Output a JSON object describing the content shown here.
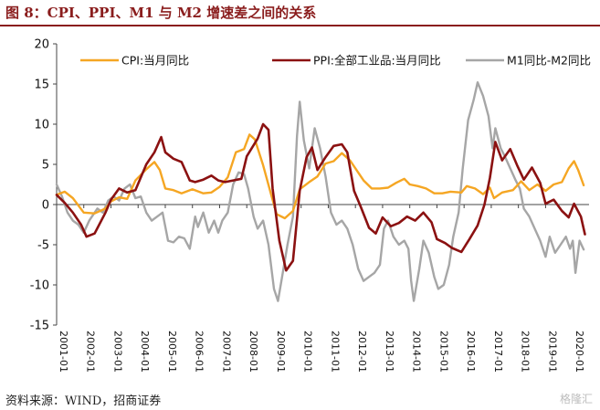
{
  "header": {
    "title": "图 8：CPI、PPI、M1 与 M2 增速差之间的关系"
  },
  "footer": {
    "source": "资料来源：WIND，招商证券",
    "watermark": "格隆汇"
  },
  "colors": {
    "cpi": "#f5a623",
    "ppi": "#8b1111",
    "m1m2": "#a6a6a6",
    "axis": "#444444",
    "title": "#8a1d1d"
  },
  "chart_data": {
    "type": "line",
    "title": "",
    "xlabel": "",
    "ylabel": "",
    "ylim": [
      -15,
      20
    ],
    "yticks": [
      -15,
      -10,
      -5,
      0,
      5,
      10,
      15,
      20
    ],
    "xlim": [
      2001.0,
      2020.6
    ],
    "xtick_labels": [
      "2001-01",
      "2002-01",
      "2003-01",
      "2004-01",
      "2005-01",
      "2006-01",
      "2007-01",
      "2008-01",
      "2009-01",
      "2010-01",
      "2011-01",
      "2012-01",
      "2013-01",
      "2014-01",
      "2015-01",
      "2016-01",
      "2017-01",
      "2018-01",
      "2019-01",
      "2020-01"
    ],
    "grid": false,
    "legend": "top",
    "series": [
      {
        "name": "CPI:当月同比",
        "color_key": "cpi",
        "points": [
          [
            2001.0,
            1.2
          ],
          [
            2001.3,
            1.6
          ],
          [
            2001.6,
            0.8
          ],
          [
            2002.0,
            -1.0
          ],
          [
            2002.4,
            -1.1
          ],
          [
            2002.8,
            -0.5
          ],
          [
            2003.0,
            0.4
          ],
          [
            2003.3,
            0.9
          ],
          [
            2003.6,
            0.7
          ],
          [
            2003.9,
            3.0
          ],
          [
            2004.3,
            4.4
          ],
          [
            2004.6,
            5.3
          ],
          [
            2004.8,
            4.3
          ],
          [
            2005.0,
            2.0
          ],
          [
            2005.3,
            1.8
          ],
          [
            2005.6,
            1.4
          ],
          [
            2006.0,
            1.9
          ],
          [
            2006.4,
            1.4
          ],
          [
            2006.7,
            1.5
          ],
          [
            2007.0,
            2.2
          ],
          [
            2007.3,
            3.4
          ],
          [
            2007.6,
            6.5
          ],
          [
            2007.9,
            6.9
          ],
          [
            2008.1,
            8.7
          ],
          [
            2008.3,
            8.1
          ],
          [
            2008.6,
            4.9
          ],
          [
            2008.9,
            1.2
          ],
          [
            2009.1,
            -1.2
          ],
          [
            2009.4,
            -1.7
          ],
          [
            2009.7,
            -0.8
          ],
          [
            2009.95,
            1.9
          ],
          [
            2010.3,
            2.8
          ],
          [
            2010.6,
            3.5
          ],
          [
            2010.9,
            5.1
          ],
          [
            2011.2,
            5.4
          ],
          [
            2011.5,
            6.4
          ],
          [
            2011.8,
            5.5
          ],
          [
            2012.0,
            4.5
          ],
          [
            2012.3,
            3.0
          ],
          [
            2012.6,
            2.0
          ],
          [
            2012.9,
            2.0
          ],
          [
            2013.2,
            2.1
          ],
          [
            2013.5,
            2.7
          ],
          [
            2013.8,
            3.2
          ],
          [
            2014.0,
            2.5
          ],
          [
            2014.3,
            2.3
          ],
          [
            2014.6,
            2.0
          ],
          [
            2014.9,
            1.4
          ],
          [
            2015.2,
            1.4
          ],
          [
            2015.5,
            1.6
          ],
          [
            2015.9,
            1.5
          ],
          [
            2016.1,
            2.3
          ],
          [
            2016.4,
            2.0
          ],
          [
            2016.7,
            1.3
          ],
          [
            2016.95,
            2.1
          ],
          [
            2017.1,
            0.8
          ],
          [
            2017.4,
            1.5
          ],
          [
            2017.8,
            1.8
          ],
          [
            2018.1,
            2.9
          ],
          [
            2018.4,
            1.8
          ],
          [
            2018.7,
            2.5
          ],
          [
            2019.0,
            1.7
          ],
          [
            2019.3,
            2.5
          ],
          [
            2019.6,
            2.8
          ],
          [
            2019.85,
            4.5
          ],
          [
            2020.05,
            5.4
          ],
          [
            2020.2,
            4.3
          ],
          [
            2020.4,
            2.4
          ]
        ]
      },
      {
        "name": "PPI:全部工业品:当月同比",
        "color_key": "ppi",
        "points": [
          [
            2001.0,
            1.2
          ],
          [
            2001.3,
            0.2
          ],
          [
            2001.6,
            -1.0
          ],
          [
            2001.9,
            -2.5
          ],
          [
            2002.1,
            -4.0
          ],
          [
            2002.4,
            -3.6
          ],
          [
            2002.8,
            -1.0
          ],
          [
            2003.0,
            0.6
          ],
          [
            2003.3,
            2.0
          ],
          [
            2003.6,
            1.5
          ],
          [
            2003.9,
            1.8
          ],
          [
            2004.3,
            5.0
          ],
          [
            2004.6,
            6.5
          ],
          [
            2004.85,
            8.4
          ],
          [
            2005.0,
            6.5
          ],
          [
            2005.3,
            5.7
          ],
          [
            2005.6,
            5.3
          ],
          [
            2005.9,
            3.0
          ],
          [
            2006.1,
            2.8
          ],
          [
            2006.4,
            3.1
          ],
          [
            2006.7,
            3.6
          ],
          [
            2006.95,
            3.0
          ],
          [
            2007.2,
            2.8
          ],
          [
            2007.5,
            3.0
          ],
          [
            2007.8,
            3.2
          ],
          [
            2008.0,
            6.0
          ],
          [
            2008.4,
            8.2
          ],
          [
            2008.6,
            10.0
          ],
          [
            2008.8,
            9.3
          ],
          [
            2008.95,
            2.0
          ],
          [
            2009.2,
            -4.5
          ],
          [
            2009.45,
            -8.2
          ],
          [
            2009.7,
            -7.0
          ],
          [
            2009.95,
            1.7
          ],
          [
            2010.2,
            5.9
          ],
          [
            2010.4,
            7.1
          ],
          [
            2010.6,
            4.3
          ],
          [
            2010.9,
            5.9
          ],
          [
            2011.2,
            7.3
          ],
          [
            2011.5,
            7.5
          ],
          [
            2011.7,
            6.5
          ],
          [
            2011.95,
            1.7
          ],
          [
            2012.2,
            -0.3
          ],
          [
            2012.5,
            -2.9
          ],
          [
            2012.75,
            -3.6
          ],
          [
            2013.0,
            -1.6
          ],
          [
            2013.3,
            -2.7
          ],
          [
            2013.6,
            -2.3
          ],
          [
            2013.9,
            -1.5
          ],
          [
            2014.2,
            -2.0
          ],
          [
            2014.5,
            -1.0
          ],
          [
            2014.8,
            -2.2
          ],
          [
            2015.0,
            -4.3
          ],
          [
            2015.3,
            -4.8
          ],
          [
            2015.55,
            -5.4
          ],
          [
            2015.9,
            -5.9
          ],
          [
            2016.2,
            -4.3
          ],
          [
            2016.5,
            -2.6
          ],
          [
            2016.75,
            0.0
          ],
          [
            2016.95,
            3.3
          ],
          [
            2017.15,
            7.8
          ],
          [
            2017.4,
            5.5
          ],
          [
            2017.7,
            6.9
          ],
          [
            2017.95,
            4.9
          ],
          [
            2018.2,
            3.1
          ],
          [
            2018.5,
            4.6
          ],
          [
            2018.8,
            2.7
          ],
          [
            2019.0,
            0.1
          ],
          [
            2019.3,
            0.6
          ],
          [
            2019.6,
            -0.8
          ],
          [
            2019.85,
            -1.6
          ],
          [
            2020.05,
            0.1
          ],
          [
            2020.3,
            -1.5
          ],
          [
            2020.45,
            -3.7
          ]
        ]
      },
      {
        "name": "M1同比-M2同比",
        "color_key": "m1m2",
        "points": [
          [
            2001.0,
            2.5
          ],
          [
            2001.2,
            1.0
          ],
          [
            2001.4,
            -1.0
          ],
          [
            2001.6,
            -2.0
          ],
          [
            2001.8,
            -2.5
          ],
          [
            2002.0,
            -3.5
          ],
          [
            2002.2,
            -2.0
          ],
          [
            2002.5,
            -0.5
          ],
          [
            2002.7,
            -1.0
          ],
          [
            2002.9,
            0.5
          ],
          [
            2003.1,
            1.0
          ],
          [
            2003.3,
            0.5
          ],
          [
            2003.5,
            2.0
          ],
          [
            2003.7,
            2.5
          ],
          [
            2003.9,
            0.8
          ],
          [
            2004.1,
            1.0
          ],
          [
            2004.3,
            -1.0
          ],
          [
            2004.5,
            -2.0
          ],
          [
            2004.7,
            -1.5
          ],
          [
            2004.9,
            -1.0
          ],
          [
            2005.1,
            -4.5
          ],
          [
            2005.3,
            -4.7
          ],
          [
            2005.5,
            -4.0
          ],
          [
            2005.7,
            -4.2
          ],
          [
            2005.9,
            -5.5
          ],
          [
            2006.1,
            -1.5
          ],
          [
            2006.2,
            -2.8
          ],
          [
            2006.4,
            -1.0
          ],
          [
            2006.6,
            -3.5
          ],
          [
            2006.8,
            -2.0
          ],
          [
            2006.95,
            -3.5
          ],
          [
            2007.1,
            -2.0
          ],
          [
            2007.3,
            -1.0
          ],
          [
            2007.5,
            2.5
          ],
          [
            2007.7,
            4.0
          ],
          [
            2007.9,
            3.8
          ],
          [
            2008.05,
            2.0
          ],
          [
            2008.25,
            -1.5
          ],
          [
            2008.4,
            -3.0
          ],
          [
            2008.6,
            -2.0
          ],
          [
            2008.8,
            -5.0
          ],
          [
            2009.0,
            -10.5
          ],
          [
            2009.15,
            -12.0
          ],
          [
            2009.3,
            -9.0
          ],
          [
            2009.5,
            -5.0
          ],
          [
            2009.7,
            -1.5
          ],
          [
            2009.85,
            8.5
          ],
          [
            2009.95,
            12.8
          ],
          [
            2010.1,
            8.0
          ],
          [
            2010.3,
            4.5
          ],
          [
            2010.5,
            9.5
          ],
          [
            2010.7,
            7.0
          ],
          [
            2010.9,
            3.5
          ],
          [
            2011.1,
            -1.0
          ],
          [
            2011.3,
            -2.5
          ],
          [
            2011.5,
            -2.0
          ],
          [
            2011.7,
            -3.0
          ],
          [
            2011.9,
            -5.0
          ],
          [
            2012.1,
            -8.0
          ],
          [
            2012.3,
            -9.5
          ],
          [
            2012.5,
            -9.0
          ],
          [
            2012.7,
            -8.5
          ],
          [
            2012.9,
            -7.5
          ],
          [
            2013.05,
            -3.0
          ],
          [
            2013.2,
            -2.0
          ],
          [
            2013.4,
            -4.0
          ],
          [
            2013.6,
            -5.0
          ],
          [
            2013.8,
            -4.5
          ],
          [
            2013.95,
            -5.5
          ],
          [
            2014.05,
            -9.5
          ],
          [
            2014.15,
            -12.0
          ],
          [
            2014.35,
            -8.0
          ],
          [
            2014.5,
            -4.5
          ],
          [
            2014.7,
            -6.0
          ],
          [
            2014.9,
            -9.0
          ],
          [
            2015.05,
            -10.5
          ],
          [
            2015.25,
            -10.0
          ],
          [
            2015.45,
            -7.5
          ],
          [
            2015.6,
            -4.0
          ],
          [
            2015.8,
            -1.0
          ],
          [
            2015.95,
            4.5
          ],
          [
            2016.15,
            10.5
          ],
          [
            2016.35,
            13.0
          ],
          [
            2016.5,
            15.2
          ],
          [
            2016.7,
            13.5
          ],
          [
            2016.9,
            11.0
          ],
          [
            2017.05,
            7.0
          ],
          [
            2017.15,
            9.5
          ],
          [
            2017.35,
            7.0
          ],
          [
            2017.5,
            6.0
          ],
          [
            2017.7,
            4.5
          ],
          [
            2017.9,
            3.0
          ],
          [
            2018.05,
            2.0
          ],
          [
            2018.2,
            -0.5
          ],
          [
            2018.4,
            -1.5
          ],
          [
            2018.6,
            -3.0
          ],
          [
            2018.8,
            -4.5
          ],
          [
            2019.0,
            -6.5
          ],
          [
            2019.15,
            -4.0
          ],
          [
            2019.35,
            -6.0
          ],
          [
            2019.55,
            -5.0
          ],
          [
            2019.75,
            -4.0
          ],
          [
            2019.9,
            -5.5
          ],
          [
            2020.0,
            -4.5
          ],
          [
            2020.1,
            -8.5
          ],
          [
            2020.25,
            -4.5
          ],
          [
            2020.4,
            -5.6
          ]
        ]
      }
    ]
  }
}
